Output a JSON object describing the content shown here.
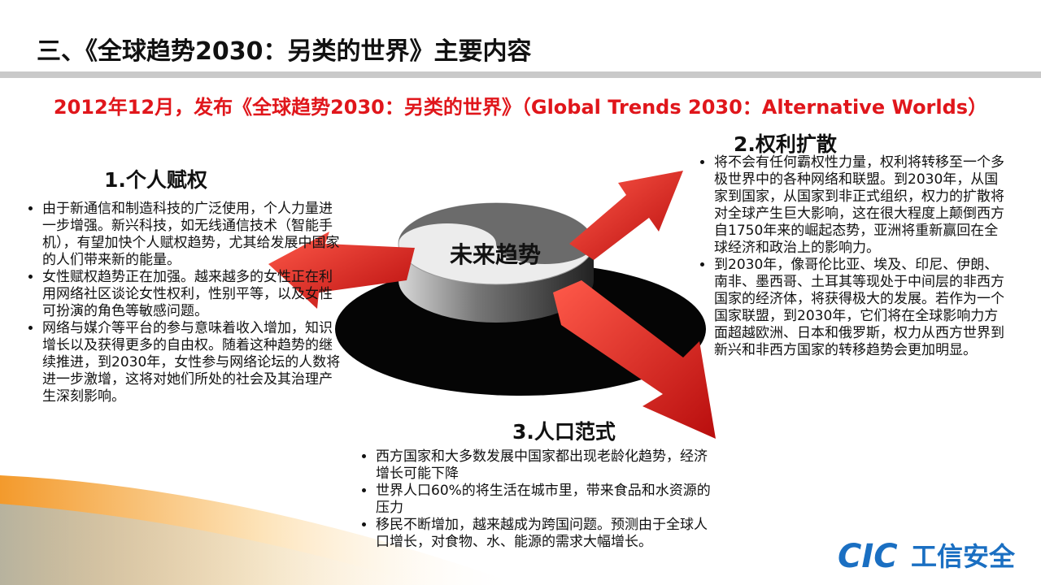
{
  "header": {
    "title": "三、《全球趋势2030：另类的世界》主要内容"
  },
  "subtitle": "2012年12月，发布《全球趋势2030：另类的世界》（Global Trends 2030：Alternative Worlds）",
  "center_label": "未来趋势",
  "sections": [
    {
      "heading": "1.个人赋权",
      "bullets": [
        "由于新通信和制造科技的广泛使用，个人力量进一步增强。新兴科技，如无线通信技术（智能手机），有望加快个人赋权趋势，尤其给发展中国家的人们带来新的能量。",
        "女性赋权趋势正在加强。越来越多的女性正在利用网络社区谈论女性权利，性别平等，以及女性可扮演的角色等敏感问题。",
        "网络与媒介等平台的参与意味着收入增加，知识增长以及获得更多的自由权。随着这种趋势的继续推进，到2030年，女性参与网络论坛的人数将进一步激增，这将对她们所处的社会及其治理产生深刻影响。"
      ]
    },
    {
      "heading": "2.权利扩散",
      "bullets": [
        "将不会有任何霸权性力量，权利将转移至一个多极世界中的各种网络和联盟。到2030年，从国家到国家，从国家到非正式组织，权力的扩散将对全球产生巨大影响，这在很大程度上颠倒西方自1750年来的崛起态势，亚洲将重新赢回在全球经济和政治上的影响力。",
        "到2030年，像哥伦比亚、埃及、印尼、伊朗、南非、墨西哥、土耳其等现处于中间层的非西方国家的经济体，将获得极大的发展。若作为一个国家联盟，到2030年，它们将在全球影响力方面超越欧洲、日本和俄罗斯，权力从西方世界到新兴和非西方国家的转移趋势会更加明显。"
      ]
    },
    {
      "heading": "3.人口范式",
      "bullets": [
        "西方国家和大多数发展中国家都出现老龄化趋势，经济增长可能下降",
        "世界人口60%的将生活在城市里，带来食品和水资源的压力",
        "移民不断增加，越来越成为跨国问题。预测由于全球人口增长，对食物、水、能源的需求大幅增长。"
      ]
    }
  ],
  "logo": {
    "mark": "CIC",
    "text": "工信安全"
  }
}
